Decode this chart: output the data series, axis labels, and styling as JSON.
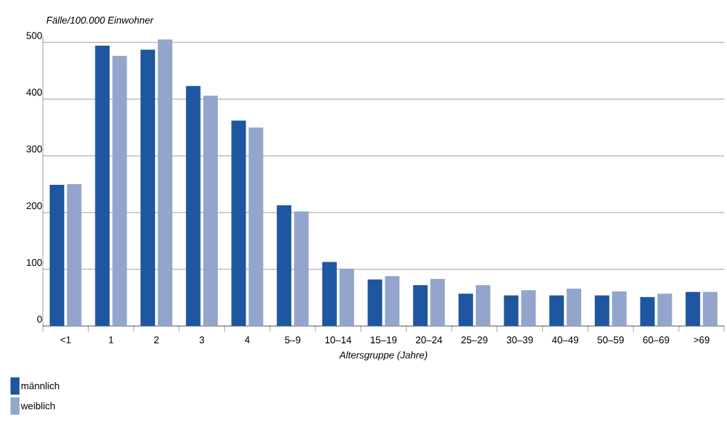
{
  "chart_data": {
    "type": "bar",
    "ylabel": "Fälle/100.000 Einwohner",
    "xlabel": "Altersgruppe (Jahre)",
    "categories": [
      "<1",
      "1",
      "2",
      "3",
      "4",
      "5–9",
      "10–14",
      "15–19",
      "20–24",
      "25–29",
      "30–39",
      "40–49",
      "50–59",
      "60–69",
      ">69"
    ],
    "series": [
      {
        "name": "männlich",
        "color": "#1f56a0",
        "values": [
          249,
          494,
          487,
          423,
          362,
          213,
          113,
          82,
          72,
          57,
          54,
          54,
          54,
          51,
          60
        ]
      },
      {
        "name": "weiblich",
        "color": "#93a5cc",
        "values": [
          250,
          476,
          505,
          406,
          350,
          202,
          101,
          88,
          83,
          72,
          63,
          66,
          61,
          57,
          60
        ]
      }
    ],
    "ylim": [
      0,
      510
    ],
    "yticks": [
      0,
      100,
      200,
      300,
      400,
      500
    ],
    "grid": "y",
    "legend": "bottom left"
  }
}
